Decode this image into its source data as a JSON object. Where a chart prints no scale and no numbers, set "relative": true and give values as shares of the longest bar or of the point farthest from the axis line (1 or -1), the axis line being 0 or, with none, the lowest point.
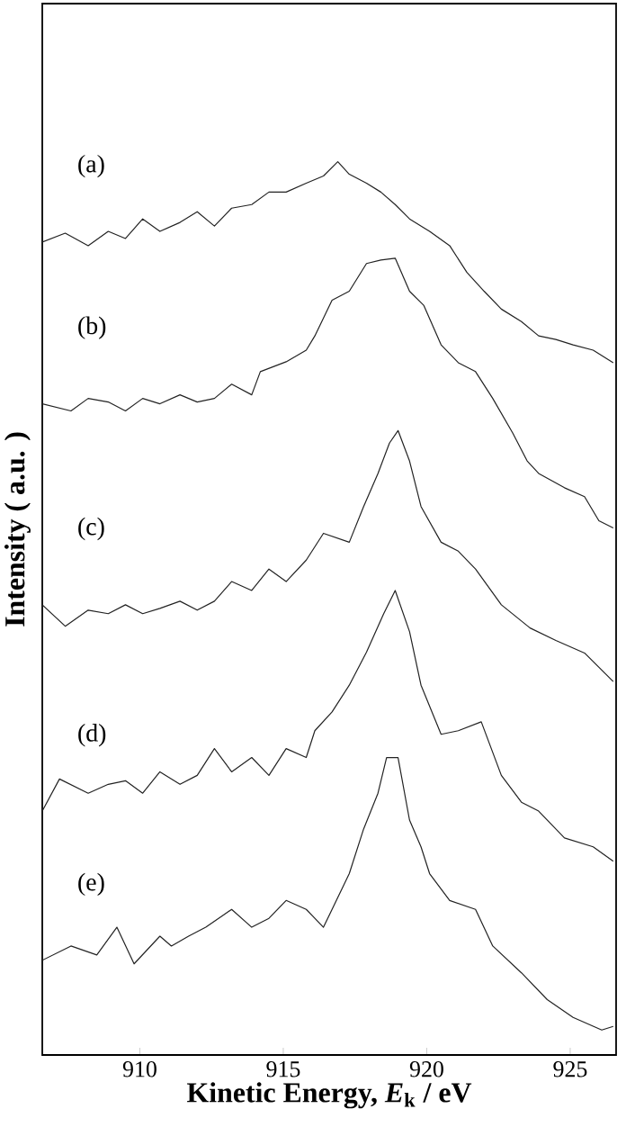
{
  "chart_data": {
    "type": "line",
    "relative": true,
    "xlabel": "Kinetic Energy, *E*$_{k}$ /  eV",
    "ylabel": "Intensity  ( a.u. )",
    "xlim": [
      906.6,
      926.6
    ],
    "xticks": [
      910,
      915,
      920,
      925
    ],
    "grid": false,
    "legend": false,
    "marker": "none",
    "line_style": "solid",
    "series": [
      {
        "name": "(a)",
        "color": "#222222",
        "x": [
          906.6,
          907.4,
          908.2,
          908.9,
          909.5,
          910.1,
          910.7,
          911.4,
          912.0,
          912.6,
          913.2,
          913.9,
          914.5,
          915.1,
          915.8,
          916.4,
          916.9,
          917.3,
          917.9,
          918.4,
          918.9,
          919.4,
          920.1,
          920.8,
          921.4,
          922.0,
          922.6,
          923.3,
          923.9,
          924.5,
          925.1,
          925.8,
          926.5
        ],
        "values": [
          0.91,
          0.92,
          0.906,
          0.922,
          0.914,
          0.936,
          0.922,
          0.932,
          0.944,
          0.928,
          0.948,
          0.952,
          0.966,
          0.966,
          0.976,
          0.984,
          1.0,
          0.986,
          0.976,
          0.966,
          0.952,
          0.936,
          0.922,
          0.906,
          0.876,
          0.855,
          0.835,
          0.821,
          0.805,
          0.801,
          0.795,
          0.789,
          0.775
        ]
      },
      {
        "name": "(b)",
        "color": "#222222",
        "x": [
          906.6,
          907.6,
          908.2,
          908.9,
          909.5,
          910.1,
          910.7,
          911.4,
          912.0,
          912.6,
          913.2,
          913.9,
          914.2,
          915.1,
          915.8,
          916.1,
          916.7,
          917.3,
          917.9,
          918.4,
          918.9,
          919.4,
          919.9,
          920.5,
          921.1,
          921.7,
          922.3,
          923.0,
          923.5,
          923.9,
          924.8,
          925.5,
          926.0,
          926.5
        ],
        "values": [
          0.729,
          0.721,
          0.735,
          0.731,
          0.721,
          0.735,
          0.729,
          0.739,
          0.731,
          0.735,
          0.751,
          0.739,
          0.765,
          0.776,
          0.789,
          0.805,
          0.845,
          0.855,
          0.886,
          0.89,
          0.892,
          0.855,
          0.839,
          0.795,
          0.775,
          0.765,
          0.735,
          0.696,
          0.665,
          0.651,
          0.635,
          0.625,
          0.598,
          0.59
        ]
      },
      {
        "name": "(c)",
        "color": "#222222",
        "x": [
          906.6,
          907.4,
          908.2,
          908.9,
          909.5,
          910.1,
          910.7,
          911.4,
          912.0,
          912.6,
          913.2,
          913.9,
          914.5,
          915.1,
          915.8,
          916.4,
          917.3,
          917.8,
          918.3,
          918.7,
          919.0,
          919.4,
          919.8,
          920.5,
          921.1,
          921.7,
          922.6,
          923.6,
          924.5,
          925.5,
          926.5
        ],
        "values": [
          0.504,
          0.48,
          0.498,
          0.494,
          0.504,
          0.494,
          0.5,
          0.508,
          0.498,
          0.508,
          0.53,
          0.52,
          0.544,
          0.53,
          0.554,
          0.584,
          0.574,
          0.614,
          0.651,
          0.685,
          0.699,
          0.665,
          0.614,
          0.574,
          0.564,
          0.544,
          0.504,
          0.478,
          0.464,
          0.45,
          0.418
        ]
      },
      {
        "name": "(d)",
        "color": "#222222",
        "x": [
          906.6,
          907.2,
          908.2,
          908.9,
          909.5,
          910.1,
          910.7,
          911.4,
          912.0,
          912.6,
          913.2,
          913.9,
          914.5,
          915.1,
          915.8,
          916.1,
          916.7,
          917.3,
          917.9,
          918.5,
          918.9,
          919.4,
          919.8,
          920.5,
          921.1,
          921.9,
          922.6,
          923.3,
          923.9,
          924.8,
          925.8,
          926.5
        ],
        "values": [
          0.273,
          0.309,
          0.293,
          0.303,
          0.307,
          0.293,
          0.317,
          0.303,
          0.313,
          0.343,
          0.317,
          0.333,
          0.313,
          0.343,
          0.333,
          0.363,
          0.384,
          0.414,
          0.451,
          0.494,
          0.52,
          0.474,
          0.414,
          0.359,
          0.363,
          0.373,
          0.313,
          0.283,
          0.273,
          0.243,
          0.233,
          0.217
        ]
      },
      {
        "name": "(e)",
        "color": "#222222",
        "x": [
          906.6,
          907.6,
          908.5,
          909.2,
          909.8,
          910.7,
          911.1,
          911.7,
          912.3,
          913.2,
          913.9,
          914.5,
          915.1,
          915.8,
          916.4,
          917.3,
          917.8,
          918.3,
          918.6,
          919.0,
          919.4,
          919.8,
          920.1,
          920.8,
          921.7,
          922.3,
          923.3,
          924.2,
          925.1,
          926.1,
          926.5
        ],
        "values": [
          0.106,
          0.122,
          0.112,
          0.143,
          0.102,
          0.133,
          0.122,
          0.133,
          0.143,
          0.163,
          0.143,
          0.153,
          0.173,
          0.163,
          0.143,
          0.203,
          0.253,
          0.293,
          0.333,
          0.333,
          0.263,
          0.233,
          0.203,
          0.173,
          0.163,
          0.122,
          0.092,
          0.062,
          0.042,
          0.028,
          0.032
        ]
      }
    ]
  }
}
